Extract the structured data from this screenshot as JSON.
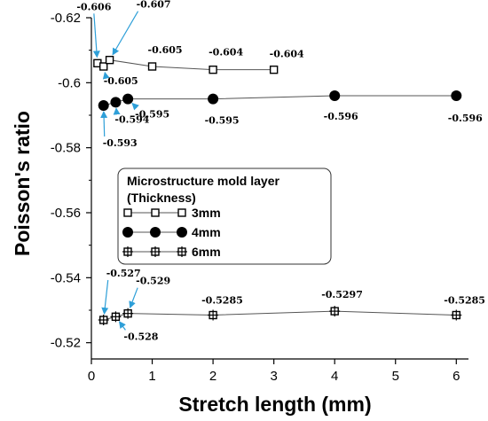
{
  "chart_data": {
    "type": "line",
    "xlabel": "Stretch length (mm)",
    "ylabel": "Poisson's ratio",
    "xlim": [
      0,
      6.2
    ],
    "ylim": [
      -0.515,
      -0.62
    ],
    "y_reversed": true,
    "xticks": [
      {
        "value": 0,
        "label": "0"
      },
      {
        "value": 1,
        "label": "1"
      },
      {
        "value": 2,
        "label": "2"
      },
      {
        "value": 3,
        "label": "3"
      },
      {
        "value": 4,
        "label": "4"
      },
      {
        "value": 5,
        "label": "5"
      },
      {
        "value": 6,
        "label": "6"
      }
    ],
    "yticks": [
      {
        "value": -0.52,
        "label": "-0.52"
      },
      {
        "value": -0.54,
        "label": "-0.54"
      },
      {
        "value": -0.56,
        "label": "-0.56"
      },
      {
        "value": -0.58,
        "label": "-0.58"
      },
      {
        "value": -0.6,
        "label": "-0.6"
      },
      {
        "value": -0.62,
        "label": "-0.62"
      }
    ],
    "grid": false,
    "legend": {
      "title": "Microstructure mold layer (Thickness)",
      "title_lines": [
        "Microstructure mold layer",
        "(Thickness)"
      ],
      "placement": "center"
    },
    "series": [
      {
        "name": "3mm",
        "marker": "square-open",
        "color": "#000000",
        "x": [
          0.1,
          0.2,
          0.3,
          1,
          2,
          3
        ],
        "y": [
          -0.606,
          -0.605,
          -0.607,
          -0.605,
          -0.604,
          -0.604
        ]
      },
      {
        "name": "4mm",
        "marker": "circle-filled",
        "color": "#000000",
        "x": [
          0.2,
          0.4,
          0.6,
          2,
          4,
          6
        ],
        "y": [
          -0.593,
          -0.594,
          -0.595,
          -0.595,
          -0.596,
          -0.596
        ]
      },
      {
        "name": "6mm",
        "marker": "square-cross",
        "color": "#000000",
        "x": [
          0.2,
          0.4,
          0.6,
          2,
          4,
          6
        ],
        "y": [
          -0.527,
          -0.528,
          -0.529,
          -0.5285,
          -0.5297,
          -0.5285
        ]
      }
    ],
    "annotations": [
      {
        "text": "-0.606",
        "series": 0,
        "point": 0,
        "arrow": true
      },
      {
        "text": "-0.605",
        "series": 0,
        "point": 1,
        "arrow": true
      },
      {
        "text": "-0.607",
        "series": 0,
        "point": 2,
        "arrow": true
      },
      {
        "text": "-0.605",
        "series": 0,
        "point": 3,
        "arrow": false
      },
      {
        "text": "-0.604",
        "series": 0,
        "point": 4,
        "arrow": false
      },
      {
        "text": "-0.604",
        "series": 0,
        "point": 5,
        "arrow": false
      },
      {
        "text": "-0.593",
        "series": 1,
        "point": 0,
        "arrow": true
      },
      {
        "text": "-0.594",
        "series": 1,
        "point": 1,
        "arrow": true
      },
      {
        "text": "-0.595",
        "series": 1,
        "point": 2,
        "arrow": true
      },
      {
        "text": "-0.595",
        "series": 1,
        "point": 3,
        "arrow": false
      },
      {
        "text": "-0.596",
        "series": 1,
        "point": 4,
        "arrow": false
      },
      {
        "text": "-0.596",
        "series": 1,
        "point": 5,
        "arrow": false
      },
      {
        "text": "-0.527",
        "series": 2,
        "point": 0,
        "arrow": true
      },
      {
        "text": "-0.528",
        "series": 2,
        "point": 1,
        "arrow": true
      },
      {
        "text": "-0.529",
        "series": 2,
        "point": 2,
        "arrow": true
      },
      {
        "text": "-0.5285",
        "series": 2,
        "point": 3,
        "arrow": false
      },
      {
        "text": "-0.5297",
        "series": 2,
        "point": 4,
        "arrow": false
      },
      {
        "text": "-0.5285",
        "series": 2,
        "point": 5,
        "arrow": false
      }
    ],
    "annotation_arrow_color": "#2e9fd8"
  }
}
